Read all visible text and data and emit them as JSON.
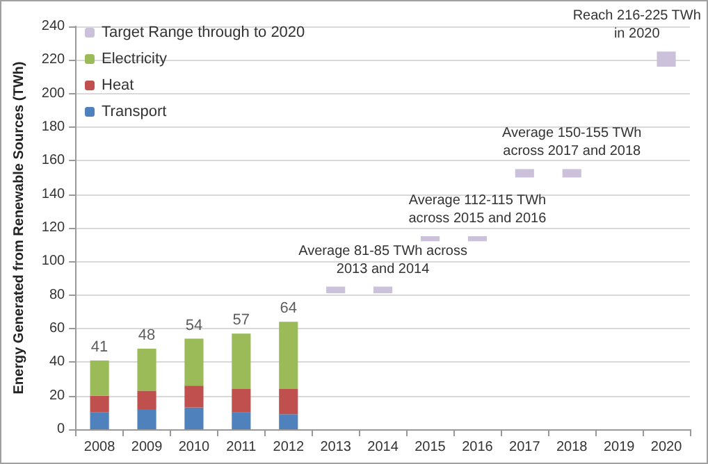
{
  "chart_data": {
    "type": "bar",
    "stacked": true,
    "ylabel": "Energy Generated from Renewable Sources (TWh)",
    "categories": [
      "2008",
      "2009",
      "2010",
      "2011",
      "2012",
      "2013",
      "2014",
      "2015",
      "2016",
      "2017",
      "2018",
      "2019",
      "2020"
    ],
    "series": [
      {
        "name": "Transport",
        "color": "#4f81bd",
        "values": [
          10,
          12,
          13,
          10,
          9,
          null,
          null,
          null,
          null,
          null,
          null,
          null,
          null
        ]
      },
      {
        "name": "Heat",
        "color": "#c0504d",
        "values": [
          10,
          11,
          13,
          14,
          15,
          null,
          null,
          null,
          null,
          null,
          null,
          null,
          null
        ]
      },
      {
        "name": "Electricity",
        "color": "#9bbb59",
        "values": [
          21,
          25,
          28,
          33,
          40,
          null,
          null,
          null,
          null,
          null,
          null,
          null,
          null
        ]
      },
      {
        "name": "Target Range through to 2020",
        "color": "#ccc1da",
        "base": [
          null,
          null,
          null,
          null,
          null,
          81,
          81,
          112,
          112,
          150,
          150,
          null,
          216
        ],
        "values": [
          null,
          null,
          null,
          null,
          null,
          4,
          4,
          3,
          3,
          5,
          5,
          null,
          9
        ]
      }
    ],
    "totals": [
      "41",
      "48",
      "54",
      "57",
      "64",
      null,
      null,
      null,
      null,
      null,
      null,
      null,
      null
    ],
    "ylim": [
      0,
      240
    ],
    "yticks": [
      0,
      20,
      40,
      60,
      80,
      100,
      120,
      140,
      160,
      180,
      200,
      220,
      240
    ],
    "grid": "y",
    "legend": "top left",
    "annotations": [
      {
        "text": "Average 81-85 TWh across\n2013 and 2014",
        "x": "2014",
        "y": 85
      },
      {
        "text": "Average 112-115 TWh\nacross 2015 and 2016",
        "x": "2016",
        "y": 115
      },
      {
        "text": "Average 150-155 TWh\nacross 2017 and 2018",
        "x": "2018",
        "y": 155
      },
      {
        "text": "Reach 216-225 TWh\nin 2020",
        "x": "2020",
        "y": 225
      }
    ]
  }
}
